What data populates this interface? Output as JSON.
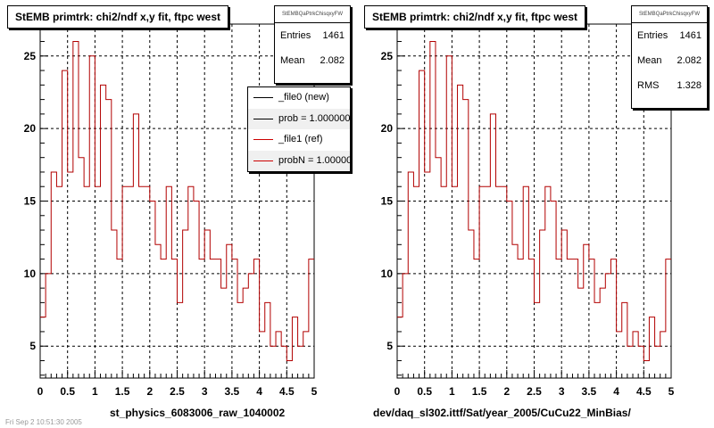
{
  "chart_data": [
    {
      "type": "histogram",
      "title": "StEMB primtrk: chi2/ndf x,y fit, ftpc west",
      "xlabel": "st_physics_6083006_raw_1040002",
      "ylabel": "",
      "xlim": [
        0,
        5
      ],
      "ylim": [
        2.8,
        27.2
      ],
      "xticks": [
        "0",
        "0.5",
        "1",
        "1.5",
        "2",
        "2.5",
        "3",
        "3.5",
        "4",
        "4.5",
        "5"
      ],
      "yticks": [
        "5",
        "10",
        "15",
        "20",
        "25"
      ],
      "grid": true,
      "bin_width": 0.1,
      "values": [
        7,
        10,
        17,
        16,
        24,
        17,
        26,
        18,
        16,
        25,
        16,
        23,
        22,
        13,
        11,
        16,
        16,
        21,
        16,
        16,
        15,
        12,
        11,
        16,
        11,
        8,
        13,
        16,
        15,
        11,
        13,
        11,
        11,
        9,
        12,
        11,
        8,
        9,
        10,
        11,
        6,
        8,
        5,
        6,
        5,
        4,
        7,
        5,
        6,
        11
      ],
      "stats": {
        "name": "StEMBQaPtrkChisqxyFW",
        "entries_label": "Entries",
        "entries": "1461",
        "mean_label": "Mean",
        "mean": "2.082"
      },
      "legend": [
        {
          "label": "_file0 (new)",
          "color": "#000000"
        },
        {
          "label": "prob = 1.000000",
          "color": "#000000"
        },
        {
          "label": "_file1 (ref)",
          "color": "#cc0000"
        },
        {
          "label": "probN = 1.000000",
          "color": "#cc0000"
        }
      ],
      "colors": {
        "histogram": "#b20000"
      }
    },
    {
      "type": "histogram",
      "title": "StEMB primtrk: chi2/ndf x,y fit, ftpc west",
      "xlabel": "dev/daq_sl302.ittf/Sat/year_2005/CuCu22_MinBias/",
      "ylabel": "",
      "xlim": [
        0,
        5
      ],
      "ylim": [
        2.8,
        27.2
      ],
      "xticks": [
        "0",
        "0.5",
        "1",
        "1.5",
        "2",
        "2.5",
        "3",
        "3.5",
        "4",
        "4.5",
        "5"
      ],
      "yticks": [
        "5",
        "10",
        "15",
        "20",
        "25"
      ],
      "grid": true,
      "bin_width": 0.1,
      "values": [
        7,
        10,
        17,
        16,
        24,
        17,
        26,
        18,
        16,
        25,
        16,
        23,
        22,
        13,
        11,
        16,
        16,
        21,
        16,
        16,
        15,
        12,
        11,
        16,
        11,
        8,
        13,
        16,
        15,
        11,
        13,
        11,
        11,
        9,
        12,
        11,
        8,
        9,
        10,
        11,
        6,
        8,
        5,
        6,
        5,
        4,
        7,
        5,
        6,
        11
      ],
      "stats": {
        "name": "StEMBQaPtrkChisqxyFW",
        "entries_label": "Entries",
        "entries": "1461",
        "mean_label": "Mean",
        "mean": "2.082",
        "rms_label": "RMS",
        "rms": "1.328"
      },
      "colors": {
        "histogram": "#b20000"
      }
    }
  ],
  "footer": {
    "text": "Fri Sep 2 10:51:30 2005"
  }
}
